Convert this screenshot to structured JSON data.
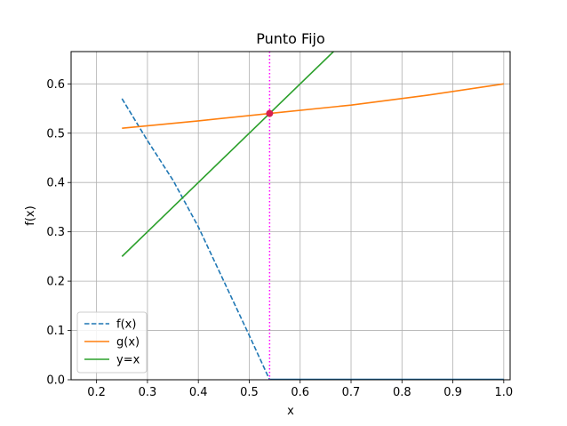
{
  "chart_data": {
    "type": "line",
    "title": "Punto Fijo",
    "xlabel": "x",
    "ylabel": "f(x)",
    "xlim": [
      0.15,
      1.0125
    ],
    "ylim": [
      0.0,
      0.6655
    ],
    "grid": true,
    "legend_position": "lower-left",
    "xticks": [
      0.2,
      0.3,
      0.4,
      0.5,
      0.6,
      0.7,
      0.8,
      0.9,
      1.0
    ],
    "xtick_labels": [
      "0.2",
      "0.3",
      "0.4",
      "0.5",
      "0.6",
      "0.7",
      "0.8",
      "0.9",
      "1.0"
    ],
    "yticks": [
      0.0,
      0.1,
      0.2,
      0.3,
      0.4,
      0.5,
      0.6
    ],
    "ytick_labels": [
      "0.0",
      "0.1",
      "0.2",
      "0.3",
      "0.4",
      "0.5",
      "0.6"
    ],
    "series": [
      {
        "name": "f(x)",
        "color": "#1f77b4",
        "style": "dashed",
        "x": [
          0.25,
          0.3,
          0.35,
          0.4,
          0.45,
          0.5,
          0.54
        ],
        "y": [
          0.57,
          0.485,
          0.405,
          0.31,
          0.2,
          0.09,
          0.0
        ]
      },
      {
        "name": "g(x)",
        "color": "#ff7f0e",
        "style": "solid",
        "x": [
          0.25,
          0.4,
          0.54,
          0.7,
          0.85,
          1.0
        ],
        "y": [
          0.51,
          0.525,
          0.54,
          0.557,
          0.577,
          0.6
        ]
      },
      {
        "name": "y=x",
        "color": "#2ca02c",
        "style": "solid",
        "x": [
          0.25,
          0.6655
        ],
        "y": [
          0.25,
          0.6655
        ]
      }
    ],
    "vertical_line": {
      "x": 0.54,
      "color": "#ff00ff",
      "style": "dotted"
    },
    "baseline": {
      "y": 0.0,
      "x_from": 0.54,
      "x_to": 1.0,
      "color": "#1f77b4"
    },
    "fixed_point": {
      "x": 0.54,
      "y": 0.54,
      "color": "#d62050"
    }
  }
}
